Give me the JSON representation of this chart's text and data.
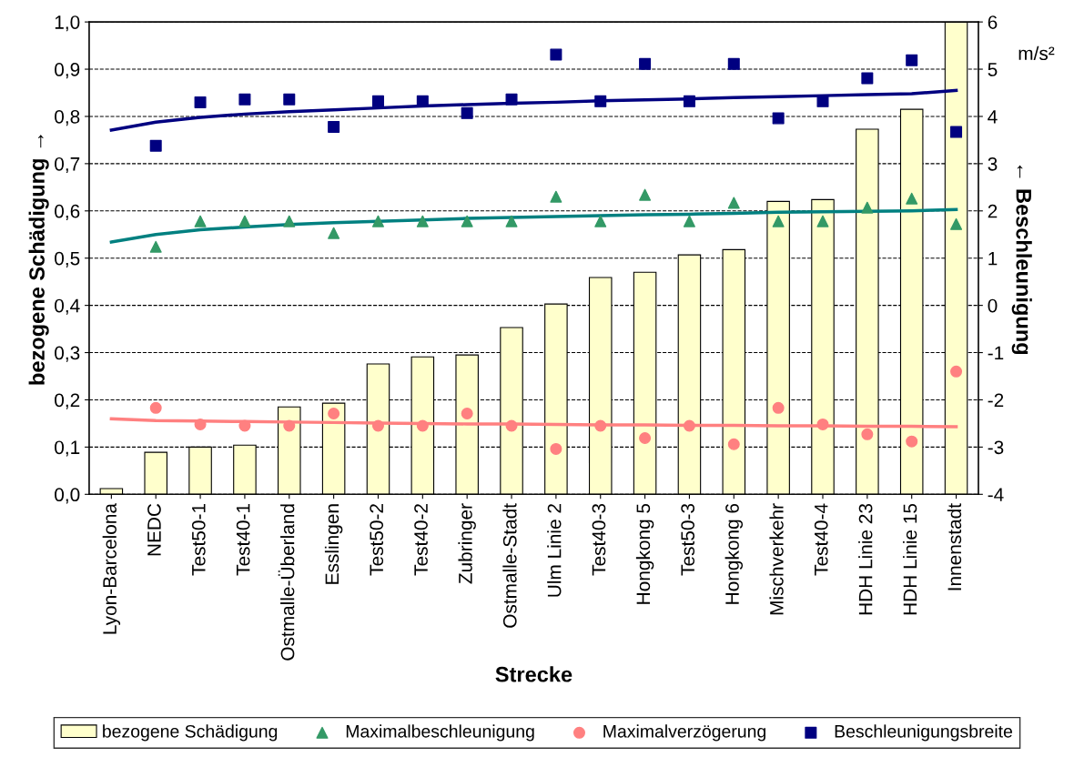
{
  "chart_data": {
    "type": "bar",
    "xlabel": "Strecke",
    "ylabel": "bezogene Schädigung →",
    "y2label": "← Beschleunigung",
    "categories": [
      "Lyon-Barcelona",
      "NEDC",
      "Test50-1",
      "Test40-1",
      "Ostmalle-Überland",
      "Esslingen",
      "Test50-2",
      "Test40-2",
      "Zubringer",
      "Ostmalle-Stadt",
      "Ulm Linie 2",
      "Test40-3",
      "Hongkong 5",
      "Test50-3",
      "Hongkong 6",
      "Mischverkehr",
      "Test40-4",
      "HDH Linie 23",
      "HDH Linie 15",
      "Innenstadt"
    ],
    "series": [
      {
        "name": "bezogene Schädigung",
        "color": "#ffffcc",
        "values": [
          0.012,
          0.089,
          0.1,
          0.104,
          0.185,
          0.193,
          0.276,
          0.291,
          0.295,
          0.353,
          0.403,
          0.459,
          0.47,
          0.507,
          0.518,
          0.62,
          0.624,
          0.773,
          0.815,
          1.0
        ]
      },
      {
        "name": "Maximalbeschleunigung",
        "type": "scatter",
        "axis": "y2",
        "marker": "triangle",
        "color": "#339966",
        "values": [
          null,
          1.24,
          1.78,
          1.78,
          1.78,
          1.53,
          1.78,
          1.78,
          1.78,
          1.78,
          2.3,
          1.78,
          2.34,
          1.78,
          2.17,
          1.78,
          1.78,
          2.07,
          2.26,
          1.72
        ]
      },
      {
        "name": "Maximalverzögerung",
        "type": "scatter",
        "axis": "y2",
        "marker": "circle",
        "color": "#ff8080",
        "values": [
          null,
          -2.17,
          -2.52,
          -2.55,
          -2.55,
          -2.29,
          -2.55,
          -2.55,
          -2.29,
          -2.55,
          -3.04,
          -2.55,
          -2.81,
          -2.55,
          -2.94,
          -2.17,
          -2.52,
          -2.73,
          -2.88,
          -1.4
        ]
      },
      {
        "name": "Beschleunigungsbreite",
        "type": "scatter",
        "axis": "y2",
        "marker": "square",
        "color": "#000080",
        "values": [
          null,
          3.38,
          4.3,
          4.36,
          4.36,
          3.78,
          4.32,
          4.32,
          4.07,
          4.36,
          5.31,
          4.32,
          5.11,
          4.32,
          5.11,
          3.96,
          4.32,
          4.81,
          5.19,
          3.67
        ]
      },
      {
        "type": "line",
        "axis": "y2",
        "color": "#000080",
        "values": [
          3.71,
          3.88,
          3.98,
          4.05,
          4.1,
          4.14,
          4.18,
          4.22,
          4.25,
          4.28,
          4.3,
          4.33,
          4.35,
          4.37,
          4.4,
          4.42,
          4.44,
          4.46,
          4.48,
          4.55
        ]
      },
      {
        "type": "line",
        "axis": "y2",
        "color": "#008080",
        "values": [
          1.34,
          1.5,
          1.6,
          1.66,
          1.71,
          1.75,
          1.78,
          1.81,
          1.84,
          1.86,
          1.88,
          1.9,
          1.92,
          1.93,
          1.95,
          1.97,
          1.98,
          1.99,
          2.0,
          2.03
        ]
      },
      {
        "type": "line",
        "axis": "y2",
        "color": "#ff8080",
        "values": [
          -2.4,
          -2.44,
          -2.45,
          -2.46,
          -2.47,
          -2.48,
          -2.49,
          -2.5,
          -2.51,
          -2.51,
          -2.52,
          -2.53,
          -2.53,
          -2.54,
          -2.54,
          -2.55,
          -2.55,
          -2.56,
          -2.56,
          -2.57
        ]
      }
    ],
    "ylim": [
      0,
      1
    ],
    "yticks": [
      {
        "value": 0,
        "label": "0,0"
      },
      {
        "value": 0.1,
        "label": "0,1"
      },
      {
        "value": 0.2,
        "label": "0,2"
      },
      {
        "value": 0.3,
        "label": "0,3"
      },
      {
        "value": 0.4,
        "label": "0,4"
      },
      {
        "value": 0.5,
        "label": "0,5"
      },
      {
        "value": 0.6,
        "label": "0,6"
      },
      {
        "value": 0.7,
        "label": "0,7"
      },
      {
        "value": 0.8,
        "label": "0,8"
      },
      {
        "value": 0.9,
        "label": "0,9"
      },
      {
        "value": 1,
        "label": "1,0"
      }
    ],
    "y2lim": [
      -4,
      6
    ],
    "y2ticks": [
      -4,
      -3,
      -2,
      -1,
      0,
      1,
      2,
      3,
      4,
      5,
      6
    ],
    "annotations": [
      "m/s²"
    ],
    "grid": "y",
    "legend": "bottom"
  }
}
